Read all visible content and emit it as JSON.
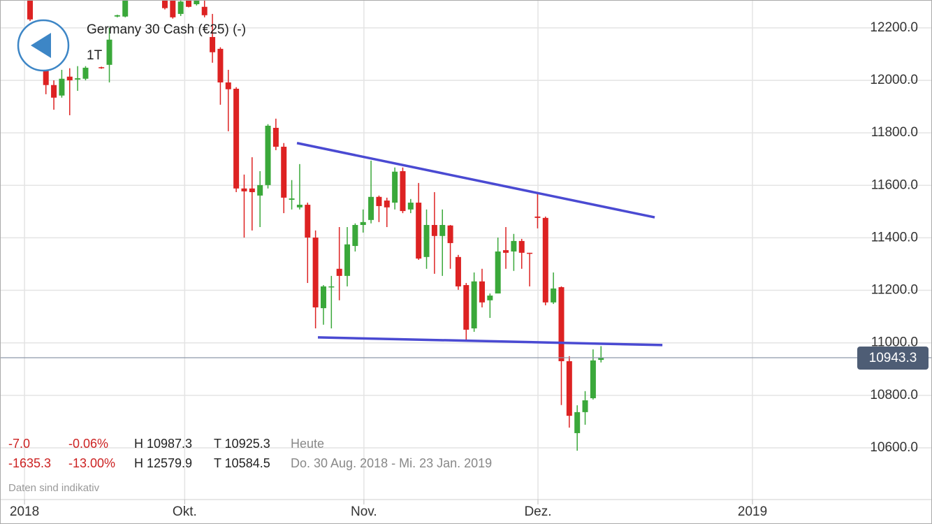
{
  "chart_data": {
    "type": "candlestick",
    "title": "Germany 30 Cash (€25) (-)",
    "timeframe": "1T",
    "x": [
      0,
      2,
      3,
      4,
      5,
      6,
      7,
      9,
      10,
      11,
      12,
      17,
      18,
      19,
      20,
      21,
      22,
      23,
      24,
      25,
      26,
      27,
      28,
      29,
      30,
      31,
      32,
      33,
      34,
      35,
      36,
      37,
      38,
      39,
      40,
      41,
      42,
      43,
      44,
      45,
      46,
      47,
      48,
      49,
      50,
      51,
      52,
      53,
      54,
      55,
      56,
      57,
      58,
      59,
      60,
      61,
      62,
      63,
      64,
      65,
      66,
      67,
      68,
      69,
      70,
      71,
      72
    ],
    "open": [
      12330,
      12054,
      11982,
      11942,
      12014,
      12003,
      12006,
      12050,
      12059,
      12243,
      12243,
      12320,
      12310,
      12253,
      12315,
      12290,
      12280,
      12165,
      12120,
      11992,
      11968,
      11588,
      11588,
      11561,
      11601,
      11819,
      11747,
      11545,
      11516,
      11526,
      11401,
      11132,
      11212,
      11282,
      11255,
      11369,
      11449,
      11468,
      11556,
      11542,
      11534,
      11654,
      11508,
      11534,
      11327,
      11449,
      11407,
      11447,
      11327,
      11220,
      11055,
      11234,
      11162,
      11188,
      11353,
      11348,
      11388,
      11343,
      11481,
      11476,
      11154,
      11212,
      10930,
      10656,
      10736,
      10789,
      10935
    ],
    "high": [
      12345,
      12094,
      12000,
      12040,
      12046,
      12054,
      12054,
      12052,
      12200,
      12250,
      12320,
      12330,
      12320,
      12315,
      12320,
      12320,
      12310,
      12253,
      12126,
      12040,
      11974,
      11641,
      11707,
      11654,
      11833,
      11854,
      11761,
      11620,
      11681,
      11534,
      11428,
      11220,
      11255,
      11441,
      11441,
      11455,
      11508,
      11694,
      11561,
      11553,
      11668,
      11668,
      11548,
      11609,
      11508,
      11574,
      11508,
      11449,
      11335,
      11228,
      11268,
      11282,
      11188,
      11401,
      11441,
      11415,
      11396,
      11343,
      11574,
      11481,
      11268,
      11215,
      10949,
      10762,
      10816,
      10975,
      10987.3
    ],
    "low": [
      12226,
      11947,
      11888,
      11934,
      11867,
      11960,
      12000,
      12044,
      11992,
      12240,
      12240,
      12270,
      12235,
      12245,
      12278,
      12285,
      12240,
      12067,
      11907,
      11806,
      11574,
      11401,
      11428,
      11441,
      11588,
      11734,
      11494,
      11508,
      11508,
      11228,
      11055,
      11069,
      11055,
      11162,
      11215,
      11348,
      11420,
      11455,
      11460,
      11441,
      11508,
      11494,
      11494,
      11316,
      11282,
      11263,
      11255,
      11282,
      11202,
      11007,
      11042,
      11135,
      11095,
      11188,
      11282,
      11274,
      11282,
      11215,
      11436,
      11143,
      11148,
      10763,
      10677,
      10589,
      10688,
      10784,
      10925.3
    ],
    "close": [
      12232,
      11982,
      11934,
      12006,
      12000,
      12008,
      12048,
      12046,
      12155,
      12248,
      12310,
      12275,
      12240,
      12300,
      12280,
      12310,
      12248,
      12107,
      11992,
      11966,
      11588,
      11577,
      11574,
      11601,
      11827,
      11747,
      11553,
      11550,
      11526,
      11401,
      11135,
      11215,
      11215,
      11255,
      11375,
      11449,
      11460,
      11556,
      11521,
      11516,
      11652,
      11502,
      11534,
      11321,
      11449,
      11407,
      11449,
      11380,
      11215,
      11050,
      11234,
      11154,
      11180,
      11348,
      11343,
      11388,
      11343,
      11340,
      11476,
      11154,
      11207,
      10930,
      10722,
      10736,
      10781,
      10933,
      10943.3
    ],
    "up_color": "#3aa83a",
    "down_color": "#dd2222",
    "trendlines": [
      {
        "x": [
          33.66,
          78.77
        ],
        "values": [
          11761,
          11478
        ],
        "color": "#4a4ad2"
      },
      {
        "x": [
          36.3,
          79.74
        ],
        "values": [
          11020.7,
          10991.4
        ],
        "color": "#4a4ad2"
      }
    ],
    "last_price": 10943.3,
    "xlim": [
      -3.79,
      113.74
    ],
    "xticks": [
      {
        "value": -0.7,
        "label": "2018"
      },
      {
        "value": 19.5,
        "label": "Okt."
      },
      {
        "value": 42.1,
        "label": "Nov."
      },
      {
        "value": 64.05,
        "label": "Dez."
      },
      {
        "value": 91.1,
        "label": "2019"
      }
    ],
    "ylim": [
      10403,
      12306
    ],
    "yticks": [
      {
        "value": 10600,
        "label": "10600.0"
      },
      {
        "value": 10800,
        "label": "10800.0"
      },
      {
        "value": 11000,
        "label": "11000.0"
      },
      {
        "value": 11200,
        "label": "11200.0"
      },
      {
        "value": 11400,
        "label": "11400.0"
      },
      {
        "value": 11600,
        "label": "11600.0"
      },
      {
        "value": 11800,
        "label": "11800.0"
      },
      {
        "value": 12000,
        "label": "12000.0"
      },
      {
        "value": 12200,
        "label": "12200.0"
      }
    ],
    "grid": true
  },
  "info": {
    "rows": [
      [
        "-7.0",
        "-0.06%",
        "H 10987.3",
        "T 10925.3",
        "Heute"
      ],
      [
        "-1635.3",
        "-13.00%",
        "H 12579.9",
        "T 10584.5",
        "Do. 30 Aug. 2018 - Mi. 23 Jan. 2019"
      ]
    ],
    "note": "Daten sind indikativ"
  }
}
